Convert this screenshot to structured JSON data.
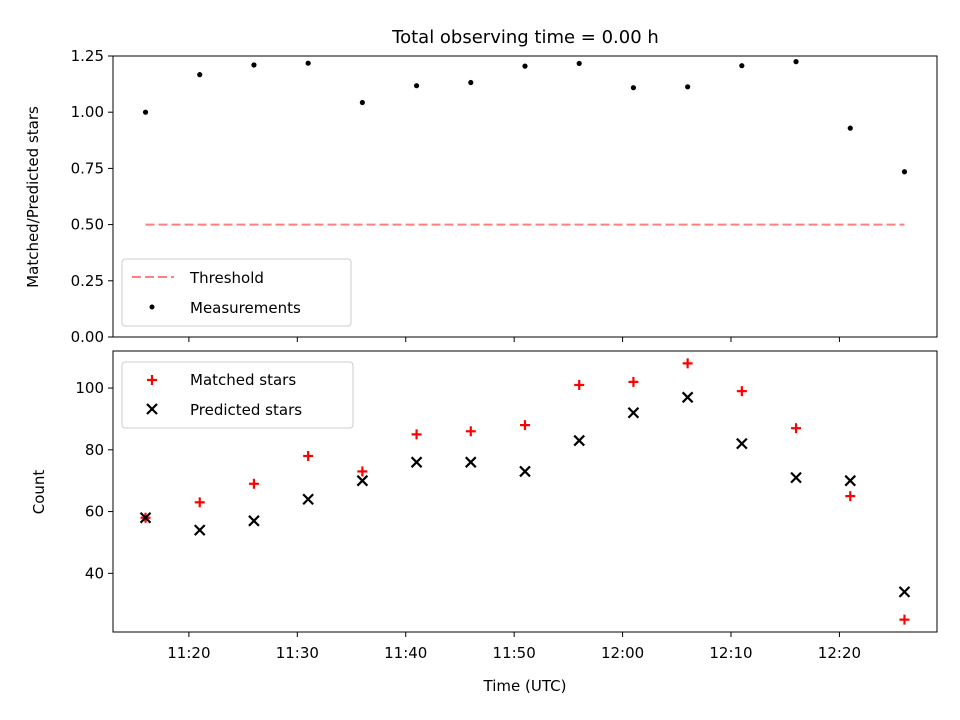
{
  "chart_data": [
    {
      "type": "scatter",
      "title": "Total observing time = 0.00 h",
      "xlabel": "",
      "ylabel": "Matched/Predicted stars",
      "ylim": [
        0,
        1.25
      ],
      "yticks": [
        "0.00",
        "0.25",
        "0.50",
        "0.75",
        "1.00",
        "1.25"
      ],
      "grid": false,
      "legend_position": "lower-left",
      "series": [
        {
          "name": "Threshold",
          "type": "line",
          "style": "dashed",
          "color": "#ff7f7f",
          "x": [
            "11:16",
            "12:26"
          ],
          "values": [
            0.5,
            0.5
          ]
        },
        {
          "name": "Measurements",
          "type": "scatter",
          "marker": "dot",
          "color": "#000000",
          "x": [
            "11:16",
            "11:21",
            "11:26",
            "11:31",
            "11:36",
            "11:41",
            "11:46",
            "11:51",
            "11:56",
            "12:01",
            "12:06",
            "12:11",
            "12:16",
            "12:21",
            "12:26"
          ],
          "values": [
            1.0,
            1.167,
            1.21,
            1.218,
            1.043,
            1.118,
            1.132,
            1.205,
            1.217,
            1.109,
            1.113,
            1.207,
            1.225,
            0.929,
            0.735
          ]
        }
      ]
    },
    {
      "type": "scatter",
      "title": "",
      "xlabel": "Time (UTC)",
      "ylabel": "Count",
      "xticks": [
        "11:20",
        "11:30",
        "11:40",
        "11:50",
        "12:00",
        "12:10",
        "12:20"
      ],
      "xlim": [
        "11:13",
        "12:29"
      ],
      "yticks": [
        "40",
        "60",
        "80",
        "100"
      ],
      "ylim": [
        21,
        112
      ],
      "grid": false,
      "legend_position": "top-left",
      "series": [
        {
          "name": "Matched stars",
          "marker": "plus",
          "color": "#ff0000",
          "x": [
            "11:16",
            "11:21",
            "11:26",
            "11:31",
            "11:36",
            "11:41",
            "11:46",
            "11:51",
            "11:56",
            "12:01",
            "12:06",
            "12:11",
            "12:16",
            "12:21",
            "12:26"
          ],
          "values": [
            58,
            63,
            69,
            78,
            73,
            85,
            86,
            88,
            101,
            102,
            108,
            99,
            87,
            65,
            25
          ]
        },
        {
          "name": "Predicted stars",
          "marker": "x",
          "color": "#000000",
          "x": [
            "11:16",
            "11:21",
            "11:26",
            "11:31",
            "11:36",
            "11:41",
            "11:46",
            "11:51",
            "11:56",
            "12:01",
            "12:06",
            "12:11",
            "12:16",
            "12:21",
            "12:26"
          ],
          "values": [
            58,
            54,
            57,
            64,
            70,
            76,
            76,
            73,
            83,
            92,
            97,
            82,
            71,
            70,
            34
          ]
        }
      ]
    }
  ]
}
